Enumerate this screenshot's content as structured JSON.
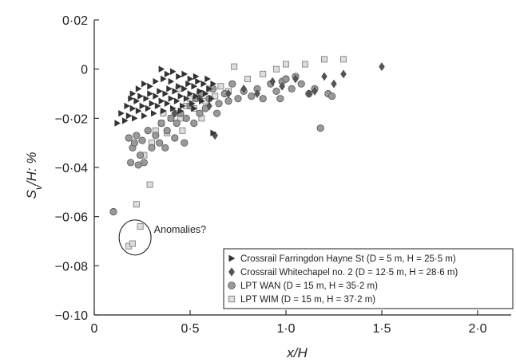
{
  "chart_data": {
    "type": "scatter",
    "title": "",
    "xlabel": "x/H",
    "ylabel_parts": [
      "S",
      "v",
      "/H: %"
    ],
    "xlim": [
      0,
      2.2
    ],
    "ylim": [
      -0.1,
      0.02
    ],
    "x_ticks": [
      0,
      0.5,
      1.0,
      1.5,
      2.0
    ],
    "x_tick_labels": [
      "0",
      "0·5",
      "1·0",
      "1·5",
      "2·0"
    ],
    "y_ticks": [
      0.02,
      0,
      -0.02,
      -0.04,
      -0.06,
      -0.08,
      -0.1
    ],
    "y_tick_labels": [
      "0·02",
      "0",
      "−0·02",
      "−0·04",
      "−0·06",
      "−0·08",
      "−0·10"
    ],
    "grid": false,
    "legend_position": "bottom-right",
    "annotation": {
      "text": "Anomalies?",
      "x": 0.22,
      "y": -0.0685
    },
    "series": [
      {
        "name": "Crossrail Farringdon Hayne St (D = 5 m, H = 25·5 m)",
        "marker": "triangle-right",
        "color": "#333333",
        "points": [
          [
            0.12,
            -0.022
          ],
          [
            0.14,
            -0.018
          ],
          [
            0.16,
            -0.021
          ],
          [
            0.17,
            -0.015
          ],
          [
            0.18,
            -0.019
          ],
          [
            0.19,
            -0.012
          ],
          [
            0.2,
            -0.016
          ],
          [
            0.21,
            -0.02
          ],
          [
            0.22,
            -0.013
          ],
          [
            0.23,
            -0.017
          ],
          [
            0.24,
            -0.011
          ],
          [
            0.25,
            -0.015
          ],
          [
            0.26,
            -0.019
          ],
          [
            0.27,
            -0.012
          ],
          [
            0.28,
            -0.016
          ],
          [
            0.29,
            -0.01
          ],
          [
            0.3,
            -0.014
          ],
          [
            0.31,
            -0.018
          ],
          [
            0.32,
            -0.011
          ],
          [
            0.33,
            -0.015
          ],
          [
            0.34,
            -0.009
          ],
          [
            0.35,
            -0.013
          ],
          [
            0.36,
            -0.017
          ],
          [
            0.37,
            -0.01
          ],
          [
            0.38,
            -0.014
          ],
          [
            0.39,
            -0.008
          ],
          [
            0.4,
            -0.012
          ],
          [
            0.41,
            -0.016
          ],
          [
            0.42,
            -0.009
          ],
          [
            0.43,
            -0.013
          ],
          [
            0.44,
            -0.007
          ],
          [
            0.45,
            -0.011
          ],
          [
            0.46,
            -0.015
          ],
          [
            0.47,
            -0.008
          ],
          [
            0.48,
            -0.012
          ],
          [
            0.49,
            -0.006
          ],
          [
            0.5,
            -0.01
          ],
          [
            0.51,
            -0.014
          ],
          [
            0.52,
            -0.007
          ],
          [
            0.53,
            -0.011
          ],
          [
            0.54,
            -0.005
          ],
          [
            0.55,
            -0.009
          ],
          [
            0.56,
            -0.013
          ],
          [
            0.57,
            -0.006
          ],
          [
            0.58,
            -0.01
          ],
          [
            0.59,
            -0.004
          ],
          [
            0.6,
            -0.008
          ],
          [
            0.61,
            -0.012
          ],
          [
            0.62,
            -0.006
          ],
          [
            0.35,
            0.0
          ],
          [
            0.38,
            -0.002
          ],
          [
            0.41,
            -0.001
          ],
          [
            0.44,
            -0.003
          ],
          [
            0.47,
            -0.002
          ],
          [
            0.5,
            -0.004
          ],
          [
            0.53,
            -0.003
          ],
          [
            0.2,
            -0.01
          ],
          [
            0.23,
            -0.008
          ],
          [
            0.26,
            -0.006
          ],
          [
            0.29,
            -0.007
          ],
          [
            0.32,
            -0.005
          ],
          [
            0.36,
            -0.004
          ],
          [
            0.4,
            -0.005
          ],
          [
            0.62,
            -0.026
          ],
          [
            0.45,
            -0.017
          ],
          [
            0.52,
            -0.016
          ]
        ]
      },
      {
        "name": "Crossrail Whitechapel no. 2 (D = 12·5 m, H = 28·6 m)",
        "marker": "diamond",
        "color": "#555555",
        "points": [
          [
            0.42,
            -0.018
          ],
          [
            0.55,
            -0.012
          ],
          [
            0.6,
            -0.015
          ],
          [
            0.63,
            -0.027
          ],
          [
            0.7,
            -0.01
          ],
          [
            0.78,
            -0.008
          ],
          [
            0.85,
            -0.01
          ],
          [
            0.93,
            -0.005
          ],
          [
            0.98,
            -0.007
          ],
          [
            1.05,
            -0.004
          ],
          [
            1.12,
            -0.01
          ],
          [
            1.15,
            -0.009
          ],
          [
            1.2,
            -0.003
          ],
          [
            1.25,
            -0.006
          ],
          [
            1.3,
            -0.002
          ],
          [
            1.5,
            0.001
          ]
        ]
      },
      {
        "name": "LPT WAN (D = 15 m, H = 35·2 m)",
        "marker": "circle",
        "color": "#999999",
        "points": [
          [
            0.1,
            -0.058
          ],
          [
            0.18,
            -0.028
          ],
          [
            0.19,
            -0.038
          ],
          [
            0.2,
            -0.032
          ],
          [
            0.21,
            -0.03
          ],
          [
            0.22,
            -0.027
          ],
          [
            0.23,
            -0.039
          ],
          [
            0.24,
            -0.035
          ],
          [
            0.25,
            -0.029
          ],
          [
            0.26,
            -0.038
          ],
          [
            0.28,
            -0.025
          ],
          [
            0.3,
            -0.032
          ],
          [
            0.32,
            -0.027
          ],
          [
            0.34,
            -0.03
          ],
          [
            0.35,
            -0.022
          ],
          [
            0.37,
            -0.032
          ],
          [
            0.38,
            -0.025
          ],
          [
            0.4,
            -0.02
          ],
          [
            0.42,
            -0.028
          ],
          [
            0.43,
            -0.022
          ],
          [
            0.45,
            -0.018
          ],
          [
            0.47,
            -0.03
          ],
          [
            0.48,
            -0.02
          ],
          [
            0.5,
            -0.015
          ],
          [
            0.52,
            -0.022
          ],
          [
            0.53,
            -0.012
          ],
          [
            0.55,
            -0.018
          ],
          [
            0.56,
            -0.01
          ],
          [
            0.58,
            -0.016
          ],
          [
            0.6,
            -0.012
          ],
          [
            0.62,
            -0.008
          ],
          [
            0.65,
            -0.014
          ],
          [
            0.68,
            -0.01
          ],
          [
            0.72,
            -0.006
          ],
          [
            0.75,
            -0.012
          ],
          [
            0.78,
            -0.009
          ],
          [
            0.82,
            -0.011
          ],
          [
            0.85,
            -0.008
          ],
          [
            0.88,
            -0.012
          ],
          [
            0.92,
            -0.006
          ],
          [
            0.95,
            -0.009
          ],
          [
            0.98,
            -0.005
          ],
          [
            1.0,
            -0.004
          ],
          [
            1.03,
            -0.008
          ],
          [
            1.05,
            -0.003
          ],
          [
            1.08,
            -0.006
          ],
          [
            1.12,
            -0.01
          ],
          [
            1.15,
            -0.008
          ],
          [
            1.18,
            -0.024
          ],
          [
            1.22,
            -0.01
          ],
          [
            1.24,
            -0.011
          ],
          [
            0.97,
            -0.012
          ],
          [
            0.64,
            -0.018
          ],
          [
            0.7,
            -0.013
          ]
        ]
      },
      {
        "name": "LPT WIM (D = 15 m, H = 37·2 m)",
        "marker": "square",
        "color": "#dddddd",
        "points": [
          [
            0.18,
            -0.072
          ],
          [
            0.2,
            -0.071
          ],
          [
            0.24,
            -0.064
          ],
          [
            0.22,
            -0.055
          ],
          [
            0.29,
            -0.047
          ],
          [
            0.26,
            -0.035
          ],
          [
            0.3,
            -0.03
          ],
          [
            0.32,
            -0.025
          ],
          [
            0.35,
            -0.022
          ],
          [
            0.38,
            -0.026
          ],
          [
            0.4,
            -0.02
          ],
          [
            0.42,
            -0.018
          ],
          [
            0.45,
            -0.02
          ],
          [
            0.48,
            -0.015
          ],
          [
            0.5,
            -0.012
          ],
          [
            0.52,
            -0.016
          ],
          [
            0.55,
            -0.01
          ],
          [
            0.58,
            -0.013
          ],
          [
            0.6,
            -0.008
          ],
          [
            0.63,
            -0.011
          ],
          [
            0.66,
            -0.007
          ],
          [
            0.7,
            -0.009
          ],
          [
            0.73,
            0.001
          ],
          [
            0.8,
            -0.004
          ],
          [
            0.88,
            -0.002
          ],
          [
            0.95,
            0.0
          ],
          [
            1.0,
            0.002
          ],
          [
            1.1,
            0.002
          ],
          [
            1.2,
            0.004
          ],
          [
            1.3,
            0.004
          ],
          [
            0.46,
            -0.025
          ],
          [
            0.36,
            -0.018
          ],
          [
            0.44,
            -0.008
          ],
          [
            0.56,
            -0.02
          ]
        ]
      }
    ]
  }
}
